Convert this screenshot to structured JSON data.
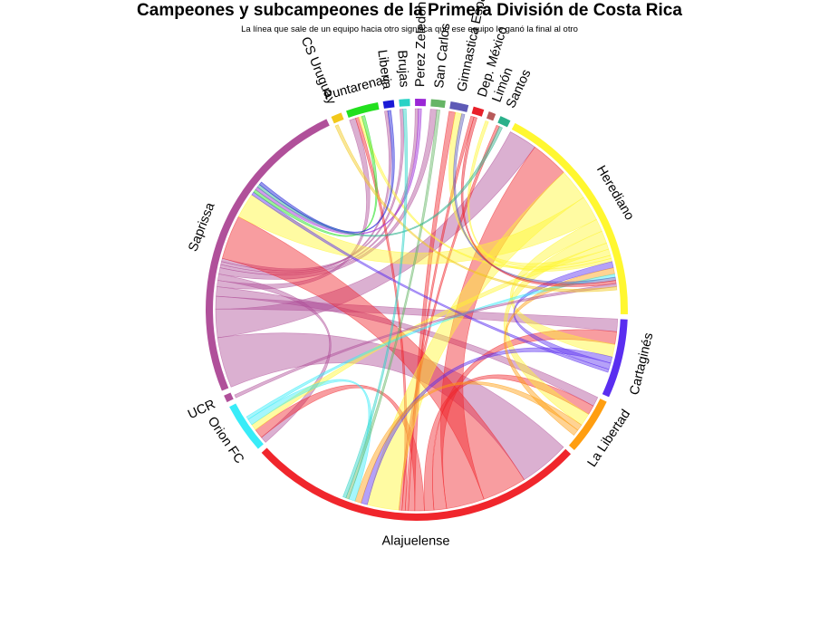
{
  "chart_data": {
    "type": "chord",
    "title": "Campeones y subcampeones de la Primera División de Costa Rica",
    "subtitle": "La línea que sale de un equipo hacia otro significa que ese equipo le ganó la final al otro",
    "sectors": [
      {
        "name": "Saprissa",
        "color": "#b0509a",
        "value": 88
      },
      {
        "name": "CS Uruguay",
        "color": "#f2c81a",
        "value": 3
      },
      {
        "name": "Puntarenas",
        "color": "#22e01e",
        "value": 9
      },
      {
        "name": "Liberia",
        "color": "#1a1ad6",
        "value": 3
      },
      {
        "name": "Brujas",
        "color": "#2ad2c6",
        "value": 3
      },
      {
        "name": "Perez Zeledon",
        "color": "#9a26d6",
        "value": 3
      },
      {
        "name": "San Carlos",
        "color": "#66b566",
        "value": 4
      },
      {
        "name": "Gimnastica Española",
        "color": "#5e5ab6",
        "value": 5
      },
      {
        "name": "Dep. México",
        "color": "#e8202a",
        "value": 3
      },
      {
        "name": "Limón",
        "color": "#b85a5a",
        "value": 2
      },
      {
        "name": "Santos",
        "color": "#2ab08a",
        "value": 3
      },
      {
        "name": "Herediano",
        "color": "#fff730",
        "value": 64
      },
      {
        "name": "Cartaginés",
        "color": "#5a2ef0",
        "value": 22
      },
      {
        "name": "La Libertad",
        "color": "#ff9e10",
        "value": 16
      },
      {
        "name": "Alajuelense",
        "color": "#f0262c",
        "value": 95
      },
      {
        "name": "Orion FC",
        "color": "#38ecf8",
        "value": 14
      },
      {
        "name": "UCR",
        "color": "#b0509a",
        "value": 2
      }
    ],
    "links": [
      {
        "from": "Saprissa",
        "to": "Alajuelense",
        "value": 16
      },
      {
        "from": "Saprissa",
        "to": "Herediano",
        "value": 9
      },
      {
        "from": "Saprissa",
        "to": "Cartaginés",
        "value": 4
      },
      {
        "from": "Saprissa",
        "to": "La Libertad",
        "value": 3
      },
      {
        "from": "Saprissa",
        "to": "Puntarenas",
        "value": 2
      },
      {
        "from": "Saprissa",
        "to": "Orion FC",
        "value": 2
      },
      {
        "from": "Saprissa",
        "to": "San Carlos",
        "value": 2
      },
      {
        "from": "Saprissa",
        "to": "Perez Zeledon",
        "value": 1
      },
      {
        "from": "Saprissa",
        "to": "Liberia",
        "value": 1
      },
      {
        "from": "Saprissa",
        "to": "Brujas",
        "value": 1
      },
      {
        "from": "Alajuelense",
        "to": "Saprissa",
        "value": 14
      },
      {
        "from": "Alajuelense",
        "to": "Herediano",
        "value": 12
      },
      {
        "from": "Alajuelense",
        "to": "Cartaginés",
        "value": 4
      },
      {
        "from": "Alajuelense",
        "to": "La Libertad",
        "value": 3
      },
      {
        "from": "Alajuelense",
        "to": "Orion FC",
        "value": 3
      },
      {
        "from": "Alajuelense",
        "to": "Gimnastica Española",
        "value": 2
      },
      {
        "from": "Alajuelense",
        "to": "Dep. México",
        "value": 1
      },
      {
        "from": "Alajuelense",
        "to": "Puntarenas",
        "value": 1
      },
      {
        "from": "Alajuelense",
        "to": "Santos",
        "value": 1
      },
      {
        "from": "Herediano",
        "to": "Alajuelense",
        "value": 10
      },
      {
        "from": "Herediano",
        "to": "Saprissa",
        "value": 8
      },
      {
        "from": "Herediano",
        "to": "Cartaginés",
        "value": 4
      },
      {
        "from": "Herediano",
        "to": "La Libertad",
        "value": 4
      },
      {
        "from": "Herediano",
        "to": "Orion FC",
        "value": 2
      },
      {
        "from": "Herediano",
        "to": "Gimnastica Española",
        "value": 2
      },
      {
        "from": "Herediano",
        "to": "Puntarenas",
        "value": 1
      },
      {
        "from": "Herediano",
        "to": "Limón",
        "value": 1
      },
      {
        "from": "Cartaginés",
        "to": "Alajuelense",
        "value": 2
      },
      {
        "from": "Cartaginés",
        "to": "Herediano",
        "value": 2
      },
      {
        "from": "Cartaginés",
        "to": "Saprissa",
        "value": 1
      },
      {
        "from": "La Libertad",
        "to": "Alajuelense",
        "value": 2
      },
      {
        "from": "La Libertad",
        "to": "Herediano",
        "value": 2
      },
      {
        "from": "Orion FC",
        "to": "Alajuelense",
        "value": 2
      },
      {
        "from": "Orion FC",
        "to": "Herediano",
        "value": 1
      },
      {
        "from": "Puntarenas",
        "to": "Saprissa",
        "value": 1
      },
      {
        "from": "Perez Zeledon",
        "to": "Saprissa",
        "value": 1
      },
      {
        "from": "San Carlos",
        "to": "Alajuelense",
        "value": 1
      },
      {
        "from": "Gimnastica Española",
        "to": "Herediano",
        "value": 1
      },
      {
        "from": "Dep. México",
        "to": "Herediano",
        "value": 1
      },
      {
        "from": "Santos",
        "to": "Saprissa",
        "value": 1
      },
      {
        "from": "UCR",
        "to": "Herediano",
        "value": 1
      },
      {
        "from": "CS Uruguay",
        "to": "Herediano",
        "value": 1
      },
      {
        "from": "Liberia",
        "to": "Saprissa",
        "value": 1
      },
      {
        "from": "Brujas",
        "to": "Alajuelense",
        "value": 1
      }
    ]
  }
}
